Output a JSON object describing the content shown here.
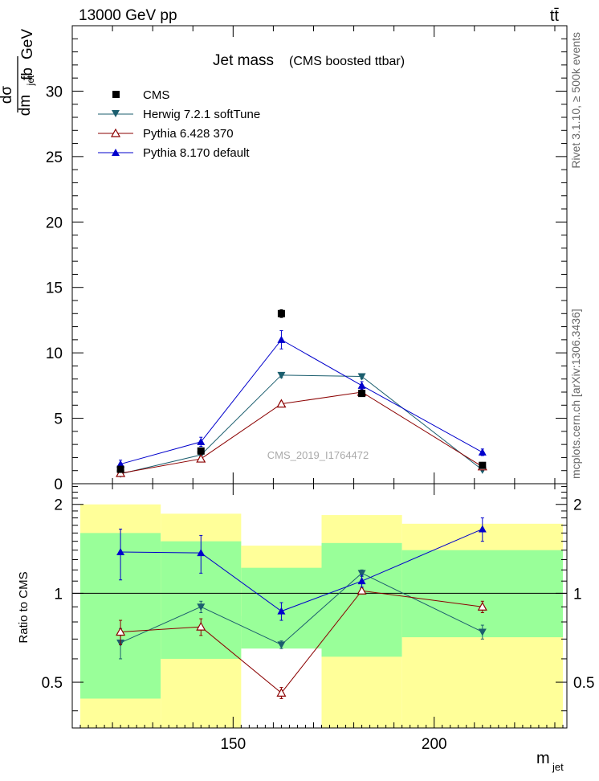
{
  "header": {
    "energy_label": "13000 GeV pp",
    "process_label": "tt̄",
    "rivet_label": "Rivet 3.1.10, ≥ 500k events",
    "mcplots_label": "mcplots.cern.ch [arXiv:1306.3436]",
    "analysis_label": "CMS_2019_I1764472"
  },
  "main_panel": {
    "title": "Jet mass",
    "subtitle": "(CMS boosted ttbar)",
    "ylabel_num_left": "dσ",
    "ylabel_den_left": "dm",
    "ylabel_den_sub": "jet",
    "ylabel_num_right": "fb",
    "ylabel_den_right": "GeV"
  },
  "ratio_panel": {
    "ylabel": "Ratio to CMS"
  },
  "axis": {
    "xlabel": "m",
    "xlabel_sub": "jet"
  },
  "legend": [
    {
      "label": "CMS",
      "color": "#000000",
      "marker": "square"
    },
    {
      "label": "Herwig 7.2.1 softTune",
      "color": "#1b5e6e",
      "marker": "triangle-down"
    },
    {
      "label": "Pythia 6.428 370",
      "color": "#8b0000",
      "marker": "triangle-open"
    },
    {
      "label": "Pythia 8.170 default",
      "color": "#0000cc",
      "marker": "triangle-up"
    }
  ],
  "chart_data": [
    {
      "type": "line",
      "panel": "main",
      "xlim": [
        110,
        233
      ],
      "ylim": [
        0,
        35
      ],
      "xticks": [
        150,
        200
      ],
      "yticks": [
        0,
        5,
        10,
        15,
        20,
        25,
        30
      ],
      "ytick_labels": [
        "0",
        "5",
        "10",
        "15",
        "20",
        "25",
        "30"
      ],
      "x": [
        122,
        142,
        162,
        182,
        212
      ],
      "series": [
        {
          "name": "CMS",
          "values": [
            1.1,
            2.5,
            13.0,
            6.9,
            1.4
          ],
          "errors": [
            0.1,
            0.15,
            0.3,
            0.2,
            0.1
          ]
        },
        {
          "name": "Herwig 7.2.1 softTune",
          "values": [
            0.75,
            2.2,
            8.3,
            8.2,
            1.05
          ],
          "errors": [
            0.15,
            0.2,
            0.2,
            0.2,
            0.1
          ]
        },
        {
          "name": "Pythia 6.428 370",
          "values": [
            0.8,
            1.9,
            6.1,
            7.0,
            1.3
          ],
          "errors": [
            0.1,
            0.15,
            0.15,
            0.15,
            0.1
          ]
        },
        {
          "name": "Pythia 8.170 default",
          "values": [
            1.5,
            3.2,
            11.0,
            7.5,
            2.4
          ],
          "errors": [
            0.3,
            0.35,
            0.7,
            0.3,
            0.25
          ]
        }
      ]
    },
    {
      "type": "line",
      "panel": "ratio",
      "yscale": "log",
      "xlim": [
        110,
        233
      ],
      "ylim": [
        0.35,
        2.35
      ],
      "yticks": [
        0.5,
        1,
        2
      ],
      "ytick_labels": [
        "0.5",
        "1",
        "2"
      ],
      "x": [
        122,
        142,
        162,
        182,
        212
      ],
      "bins": [
        {
          "lo": 112,
          "hi": 132,
          "green": [
            0.44,
            1.6
          ],
          "yellow": [
            0.35,
            2.0
          ]
        },
        {
          "lo": 132,
          "hi": 152,
          "green": [
            0.6,
            1.5
          ],
          "yellow": [
            0.35,
            1.86
          ]
        },
        {
          "lo": 152,
          "hi": 172,
          "green": [
            0.65,
            1.22
          ],
          "yellow": [
            0.84,
            1.45
          ]
        },
        {
          "lo": 172,
          "hi": 192,
          "green": [
            0.61,
            1.48
          ],
          "yellow": [
            0.35,
            1.84
          ]
        },
        {
          "lo": 192,
          "hi": 232,
          "green": [
            0.71,
            1.4
          ],
          "yellow": [
            0.35,
            1.72
          ]
        }
      ],
      "series": [
        {
          "name": "Herwig 7.2.1 softTune",
          "values": [
            0.68,
            0.9,
            0.67,
            1.17,
            0.74
          ],
          "errors": [
            0.08,
            0.04,
            0.02,
            0.03,
            0.04
          ]
        },
        {
          "name": "Pythia 6.428 370",
          "values": [
            0.74,
            0.77,
            0.46,
            1.02,
            0.9
          ],
          "errors": [
            0.07,
            0.05,
            0.02,
            0.02,
            0.04
          ]
        },
        {
          "name": "Pythia 8.170 default",
          "values": [
            1.38,
            1.37,
            0.87,
            1.1,
            1.65
          ],
          "errors": [
            0.27,
            0.2,
            0.06,
            0.05,
            0.15
          ]
        }
      ]
    }
  ]
}
